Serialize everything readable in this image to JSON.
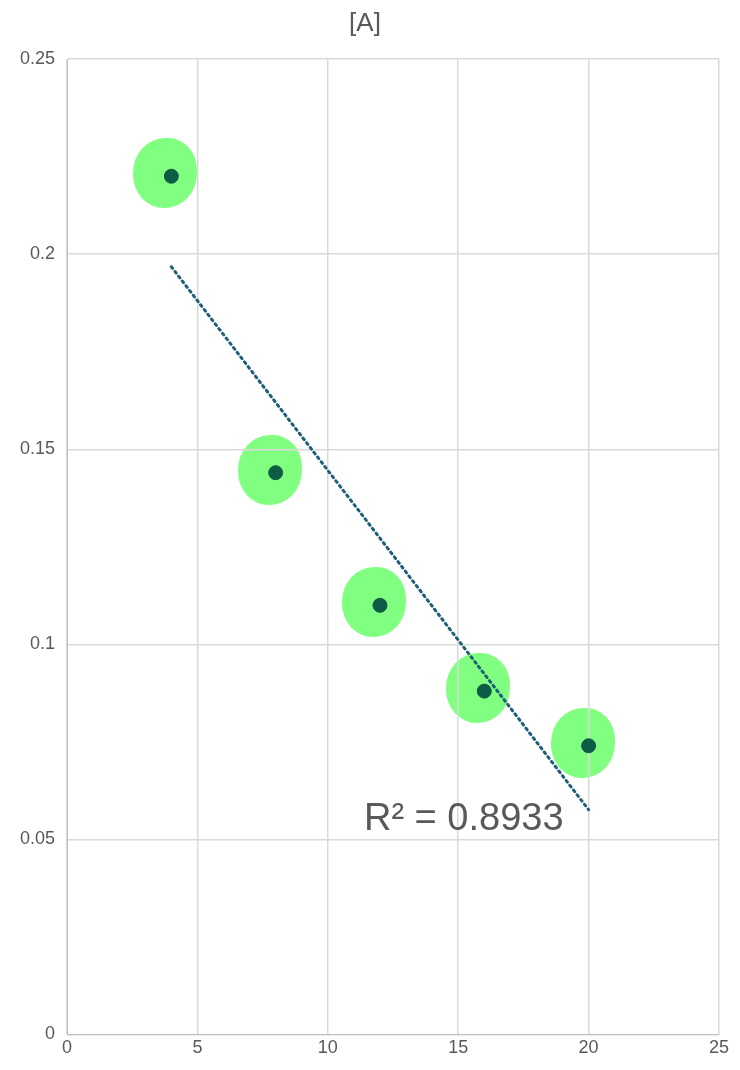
{
  "chart_data": {
    "type": "scatter",
    "title": "[A]",
    "x": [
      4,
      8,
      12,
      16,
      20
    ],
    "values": [
      0.22,
      0.144,
      0.11,
      0.088,
      0.074
    ],
    "color": "#0d5c45",
    "marker": "circle",
    "series": [
      {
        "type": "line",
        "x": [
          4,
          20
        ],
        "values": [
          0.1968,
          0.0576
        ],
        "color": "#1f5f7a",
        "line_style": "dotted",
        "marker": "none"
      }
    ],
    "annotations": [
      "R² = 0.8933"
    ],
    "xlim": [
      0,
      25
    ],
    "xticks": [
      0,
      5,
      10,
      15,
      20,
      25
    ],
    "ylim": [
      0,
      0.25
    ],
    "yticks": [
      0,
      0.05,
      0.1,
      0.15,
      0.2,
      0.25
    ],
    "grid": true,
    "legend": false
  }
}
